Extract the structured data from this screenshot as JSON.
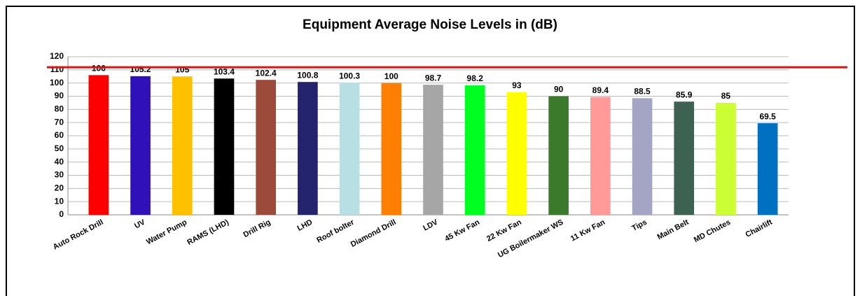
{
  "chart_data": {
    "type": "bar",
    "title": "Equipment Average Noise Levels in (dB)",
    "categories": [
      "Auto Rock Drill",
      "UV",
      "Water Pump",
      "RAMS (LHD)",
      "Drill Rig",
      "LHD",
      "Roof bolter",
      "Diamond Drill",
      "LDV",
      "45 Kw Fan",
      "22 Kw Fan",
      "UG Boilermaker WS",
      "11 Kw Fan",
      "Tips",
      "Main Belt",
      "MD Chutes",
      "Chairlift"
    ],
    "values": [
      106,
      105.2,
      105,
      103.4,
      102.4,
      100.8,
      100.3,
      100,
      98.7,
      98.2,
      93,
      90,
      89.4,
      88.5,
      85.9,
      85,
      69.5
    ],
    "colors": [
      "#ff0000",
      "#3010b8",
      "#ffc000",
      "#000000",
      "#9c4a3a",
      "#24246e",
      "#b8e0e4",
      "#ff8000",
      "#a6a6a6",
      "#00ff20",
      "#ffff00",
      "#3a7a2a",
      "#ff9a98",
      "#a4a4c4",
      "#3e6252",
      "#ccff33",
      "#0070c0"
    ],
    "ylim": [
      0,
      120
    ],
    "yticks": [
      0,
      10,
      20,
      30,
      40,
      50,
      60,
      70,
      80,
      90,
      100,
      110,
      120
    ],
    "grid": true,
    "reference_line": {
      "value": 112,
      "color": "#e01010"
    }
  }
}
